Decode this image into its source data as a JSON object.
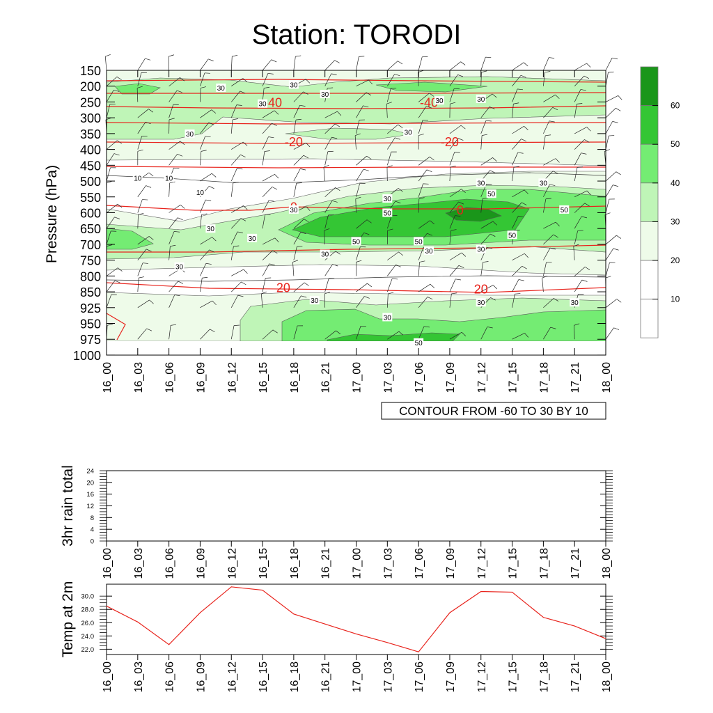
{
  "title": "Station: TORODI",
  "colors": {
    "temp_contour": "#e8231c",
    "rh_contour": "#000000",
    "temp2m_line": "#e8231c",
    "fills": [
      "#ffffff",
      "#ffffff",
      "#eefbe9",
      "#bff5b7",
      "#74ec73",
      "#34c634",
      "#1a961a"
    ]
  },
  "chart_data": [
    {
      "type": "heatmap",
      "name": "time-pressure cross section",
      "ylabel": "Pressure (hPa)",
      "y_ticks": [
        "150",
        "200",
        "250",
        "300",
        "350",
        "400",
        "450",
        "500",
        "550",
        "600",
        "650",
        "700",
        "750",
        "800",
        "850",
        "925",
        "950",
        "975",
        "1000"
      ],
      "x_ticks": [
        "16_00",
        "16_03",
        "16_06",
        "16_09",
        "16_12",
        "16_15",
        "16_18",
        "16_21",
        "17_00",
        "17_03",
        "17_06",
        "17_09",
        "17_12",
        "17_15",
        "17_18",
        "17_21",
        "18_00"
      ],
      "footnote": "CONTOUR FROM -60 TO 30 BY 10",
      "colorbar": {
        "levels": [
          10,
          20,
          30,
          40,
          50,
          60
        ],
        "labels": [
          "10",
          "20",
          "30",
          "40",
          "50",
          "60"
        ]
      },
      "temperature_contour_labels": [
        {
          "value": "-40",
          "time": "16_16",
          "pressure": 250
        },
        {
          "value": "-40",
          "time": "17_07",
          "pressure": 250
        },
        {
          "value": "-20",
          "time": "16_18",
          "pressure": 375
        },
        {
          "value": "-20",
          "time": "17_09",
          "pressure": 375
        },
        {
          "value": "0",
          "time": "16_18",
          "pressure": 580
        },
        {
          "value": "0",
          "time": "17_10",
          "pressure": 590
        },
        {
          "value": "20",
          "time": "16_17",
          "pressure": 835
        },
        {
          "value": "20",
          "time": "17_12",
          "pressure": 840
        }
      ],
      "rh_contour_labels": [
        {
          "value": "30",
          "time": "16_11",
          "pressure": 205
        },
        {
          "value": "30",
          "time": "16_18",
          "pressure": 195
        },
        {
          "value": "30",
          "time": "16_21",
          "pressure": 225
        },
        {
          "value": "30",
          "time": "16_15",
          "pressure": 255
        },
        {
          "value": "30",
          "time": "17_08",
          "pressure": 245
        },
        {
          "value": "30",
          "time": "17_12",
          "pressure": 240
        },
        {
          "value": "30",
          "time": "16_08",
          "pressure": 350
        },
        {
          "value": "30",
          "time": "17_05",
          "pressure": 345
        },
        {
          "value": "10",
          "time": "16_03",
          "pressure": 490
        },
        {
          "value": "10",
          "time": "16_06",
          "pressure": 490
        },
        {
          "value": "10",
          "time": "16_09",
          "pressure": 535
        },
        {
          "value": "30",
          "time": "16_18",
          "pressure": 590
        },
        {
          "value": "30",
          "time": "17_03",
          "pressure": 555
        },
        {
          "value": "30",
          "time": "17_12",
          "pressure": 505
        },
        {
          "value": "30",
          "time": "17_18",
          "pressure": 505
        },
        {
          "value": "50",
          "time": "17_03",
          "pressure": 600
        },
        {
          "value": "50",
          "time": "17_13",
          "pressure": 540
        },
        {
          "value": "50",
          "time": "17_20",
          "pressure": 590
        },
        {
          "value": "30",
          "time": "16_10",
          "pressure": 650
        },
        {
          "value": "30",
          "time": "16_14",
          "pressure": 680
        },
        {
          "value": "50",
          "time": "17_00",
          "pressure": 690
        },
        {
          "value": "50",
          "time": "17_06",
          "pressure": 690
        },
        {
          "value": "50",
          "time": "17_15",
          "pressure": 670
        },
        {
          "value": "30",
          "time": "16_21",
          "pressure": 730
        },
        {
          "value": "30",
          "time": "17_07",
          "pressure": 720
        },
        {
          "value": "30",
          "time": "17_12",
          "pressure": 715
        },
        {
          "value": "30",
          "time": "16_07",
          "pressure": 770
        },
        {
          "value": "30",
          "time": "16_20",
          "pressure": 890
        },
        {
          "value": "30",
          "time": "17_03",
          "pressure": 940
        },
        {
          "value": "30",
          "time": "17_12",
          "pressure": 900
        },
        {
          "value": "30",
          "time": "17_21",
          "pressure": 900
        },
        {
          "value": "50",
          "time": "17_06",
          "pressure": 980
        }
      ]
    },
    {
      "type": "line",
      "name": "3hr rain total",
      "ylabel": "3hr rain total",
      "y_ticks": [
        "0",
        "4",
        "8",
        "12",
        "16",
        "20",
        "24"
      ],
      "ylim": [
        0,
        24
      ],
      "x": [
        "16_00",
        "16_03",
        "16_06",
        "16_09",
        "16_12",
        "16_15",
        "16_18",
        "16_21",
        "17_00",
        "17_03",
        "17_06",
        "17_09",
        "17_12",
        "17_15",
        "17_18",
        "17_21",
        "18_00"
      ],
      "values": [
        0,
        0,
        0,
        0,
        0,
        0,
        0,
        0,
        0,
        0,
        0,
        0,
        0,
        0,
        0,
        0,
        0
      ]
    },
    {
      "type": "line",
      "name": "Temp at 2m",
      "ylabel": "Temp at 2m",
      "y_ticks": [
        "22.0",
        "24.0",
        "26.0",
        "28.0",
        "30.0"
      ],
      "ylim": [
        21.2,
        31.8
      ],
      "x": [
        "16_00",
        "16_03",
        "16_06",
        "16_09",
        "16_12",
        "16_15",
        "16_18",
        "16_21",
        "17_00",
        "17_03",
        "17_06",
        "17_09",
        "17_12",
        "17_15",
        "17_18",
        "17_21",
        "18_00"
      ],
      "values": [
        28.5,
        26.1,
        22.7,
        27.5,
        31.4,
        30.9,
        27.3,
        25.8,
        24.3,
        23.0,
        21.6,
        27.5,
        30.7,
        30.6,
        26.8,
        25.5,
        23.6
      ]
    }
  ]
}
